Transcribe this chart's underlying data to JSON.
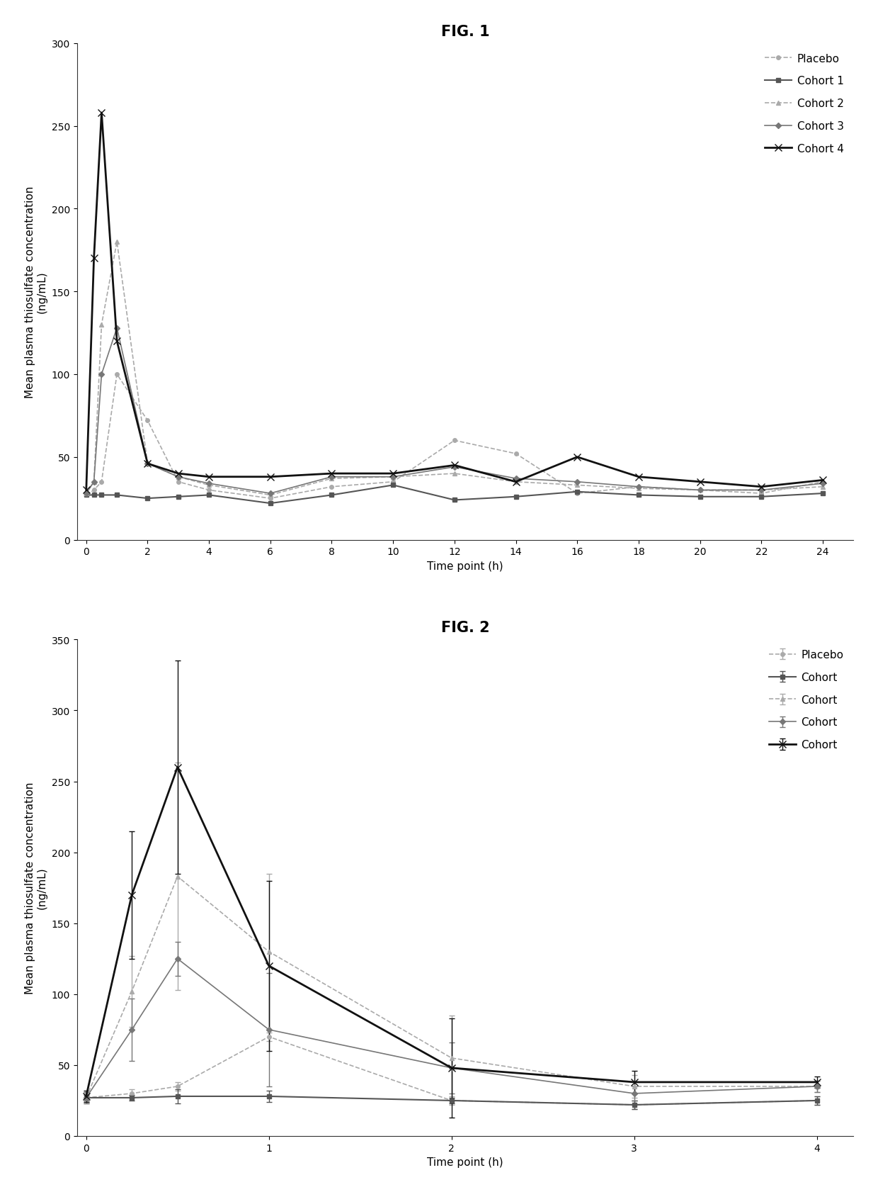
{
  "fig1": {
    "title": "FIG. 1",
    "xlabel": "Time point (h)",
    "ylabel": "Mean plasma thiosulfate concentration\n(ng/mL)",
    "ylim": [
      0,
      300
    ],
    "yticks": [
      0,
      50,
      100,
      150,
      200,
      250,
      300
    ],
    "xticks": [
      0,
      2,
      4,
      6,
      8,
      10,
      12,
      14,
      16,
      18,
      20,
      22,
      24
    ],
    "xlim": [
      -0.3,
      25
    ],
    "series": [
      {
        "label": "Placebo",
        "x": [
          0,
          0.25,
          0.5,
          1,
          2,
          3,
          4,
          6,
          8,
          10,
          12,
          14,
          16,
          18,
          20,
          22,
          24
        ],
        "y": [
          27,
          30,
          35,
          100,
          72,
          35,
          30,
          25,
          32,
          35,
          60,
          52,
          28,
          32,
          30,
          28,
          35
        ],
        "color": "#aaaaaa",
        "marker": "o",
        "linestyle": "--",
        "linewidth": 1.2,
        "markersize": 4
      },
      {
        "label": "Cohort 1",
        "x": [
          0,
          0.25,
          0.5,
          1,
          2,
          3,
          4,
          6,
          8,
          10,
          12,
          14,
          16,
          18,
          20,
          22,
          24
        ],
        "y": [
          27,
          27,
          27,
          27,
          25,
          26,
          27,
          22,
          27,
          33,
          24,
          26,
          29,
          27,
          26,
          26,
          28
        ],
        "color": "#555555",
        "marker": "s",
        "linestyle": "-",
        "linewidth": 1.5,
        "markersize": 4
      },
      {
        "label": "Cohort 2",
        "x": [
          0,
          0.25,
          0.5,
          1,
          2,
          3,
          4,
          6,
          8,
          10,
          12,
          14,
          16,
          18,
          20,
          22,
          24
        ],
        "y": [
          28,
          35,
          130,
          180,
          46,
          38,
          33,
          27,
          37,
          38,
          40,
          35,
          33,
          31,
          30,
          30,
          32
        ],
        "color": "#aaaaaa",
        "marker": "^",
        "linestyle": "--",
        "linewidth": 1.2,
        "markersize": 4
      },
      {
        "label": "Cohort 3",
        "x": [
          0,
          0.25,
          0.5,
          1,
          2,
          3,
          4,
          6,
          8,
          10,
          12,
          14,
          16,
          18,
          20,
          22,
          24
        ],
        "y": [
          28,
          35,
          100,
          128,
          46,
          38,
          34,
          28,
          38,
          38,
          44,
          37,
          35,
          32,
          30,
          30,
          34
        ],
        "color": "#777777",
        "marker": "D",
        "linestyle": "-",
        "linewidth": 1.2,
        "markersize": 4
      },
      {
        "label": "Cohort 4",
        "x": [
          0,
          0.25,
          0.5,
          1,
          2,
          3,
          4,
          6,
          8,
          10,
          12,
          14,
          16,
          18,
          20,
          22,
          24
        ],
        "y": [
          30,
          170,
          258,
          120,
          46,
          40,
          38,
          38,
          40,
          40,
          45,
          35,
          50,
          38,
          35,
          32,
          36
        ],
        "color": "#111111",
        "marker": "x",
        "linestyle": "-",
        "linewidth": 2.0,
        "markersize": 7
      }
    ]
  },
  "fig2": {
    "title": "FIG. 2",
    "xlabel": "Time point (h)",
    "ylabel": "Mean plasma thiosulfate concentration\n(ng/mL)",
    "ylim": [
      0,
      350
    ],
    "yticks": [
      0,
      50,
      100,
      150,
      200,
      250,
      300,
      350
    ],
    "xticks": [
      0,
      1,
      2,
      3,
      4
    ],
    "xlim": [
      -0.05,
      4.2
    ],
    "series": [
      {
        "label": "Placebo",
        "x": [
          0,
          0.25,
          0.5,
          1,
          2,
          3,
          4
        ],
        "y": [
          27,
          30,
          35,
          70,
          25,
          22,
          25
        ],
        "yerr": [
          3,
          3,
          3,
          3,
          3,
          3,
          3
        ],
        "color": "#aaaaaa",
        "marker": "o",
        "linestyle": "--",
        "linewidth": 1.2,
        "markersize": 4
      },
      {
        "label": "Cohort",
        "x": [
          0,
          0.25,
          0.5,
          1,
          2,
          3,
          4
        ],
        "y": [
          27,
          27,
          28,
          28,
          25,
          22,
          25
        ],
        "yerr": [
          2,
          2,
          5,
          4,
          2,
          3,
          3
        ],
        "color": "#555555",
        "marker": "s",
        "linestyle": "-",
        "linewidth": 1.5,
        "markersize": 4
      },
      {
        "label": "Cohort",
        "x": [
          0,
          0.25,
          0.5,
          1,
          2,
          3,
          4
        ],
        "y": [
          27,
          102,
          183,
          130,
          55,
          35,
          35
        ],
        "yerr": [
          4,
          25,
          80,
          55,
          30,
          8,
          4
        ],
        "color": "#aaaaaa",
        "marker": "^",
        "linestyle": "--",
        "linewidth": 1.2,
        "markersize": 4
      },
      {
        "label": "Cohort",
        "x": [
          0,
          0.25,
          0.5,
          1,
          2,
          3,
          4
        ],
        "y": [
          27,
          75,
          125,
          75,
          48,
          30,
          35
        ],
        "yerr": [
          4,
          22,
          12,
          40,
          18,
          5,
          4
        ],
        "color": "#777777",
        "marker": "D",
        "linestyle": "-",
        "linewidth": 1.2,
        "markersize": 4
      },
      {
        "label": "Cohort",
        "x": [
          0,
          0.25,
          0.5,
          1,
          2,
          3,
          4
        ],
        "y": [
          28,
          170,
          260,
          120,
          48,
          38,
          38
        ],
        "yerr": [
          4,
          45,
          75,
          60,
          35,
          8,
          4
        ],
        "color": "#111111",
        "marker": "x",
        "linestyle": "-",
        "linewidth": 2.0,
        "markersize": 7
      }
    ]
  },
  "background_color": "#ffffff",
  "title_fontsize": 15,
  "label_fontsize": 11,
  "tick_fontsize": 10,
  "legend_fontsize": 11
}
